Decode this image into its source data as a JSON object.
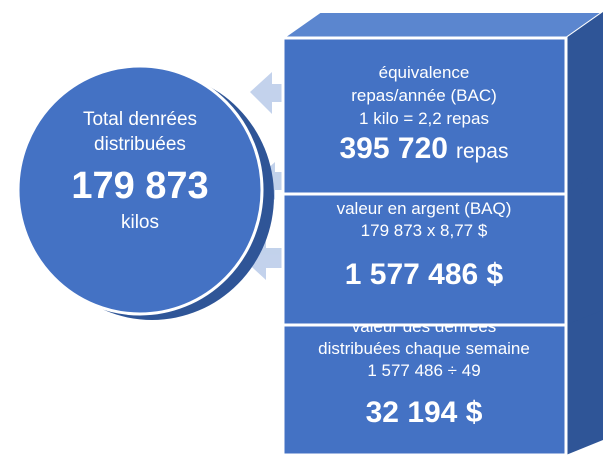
{
  "circle": {
    "label_lines": [
      "Total denrées",
      "distribuées"
    ],
    "value": "179 873",
    "unit": "kilos"
  },
  "blocks": [
    {
      "lines": [
        "équivalence",
        "repas/année (BAC)",
        "1 kilo = 2,2 repas"
      ],
      "value": "395 720",
      "suffix": "repas"
    },
    {
      "lines": [
        "valeur en argent (BAQ)",
        "179 873 x 8,77 $"
      ],
      "value": "1 577 486 $"
    },
    {
      "lines": [
        "valeur des denrées",
        "distribuées chaque semaine",
        "1 577 486 ÷ 49"
      ],
      "value": "32 194 $"
    }
  ]
}
